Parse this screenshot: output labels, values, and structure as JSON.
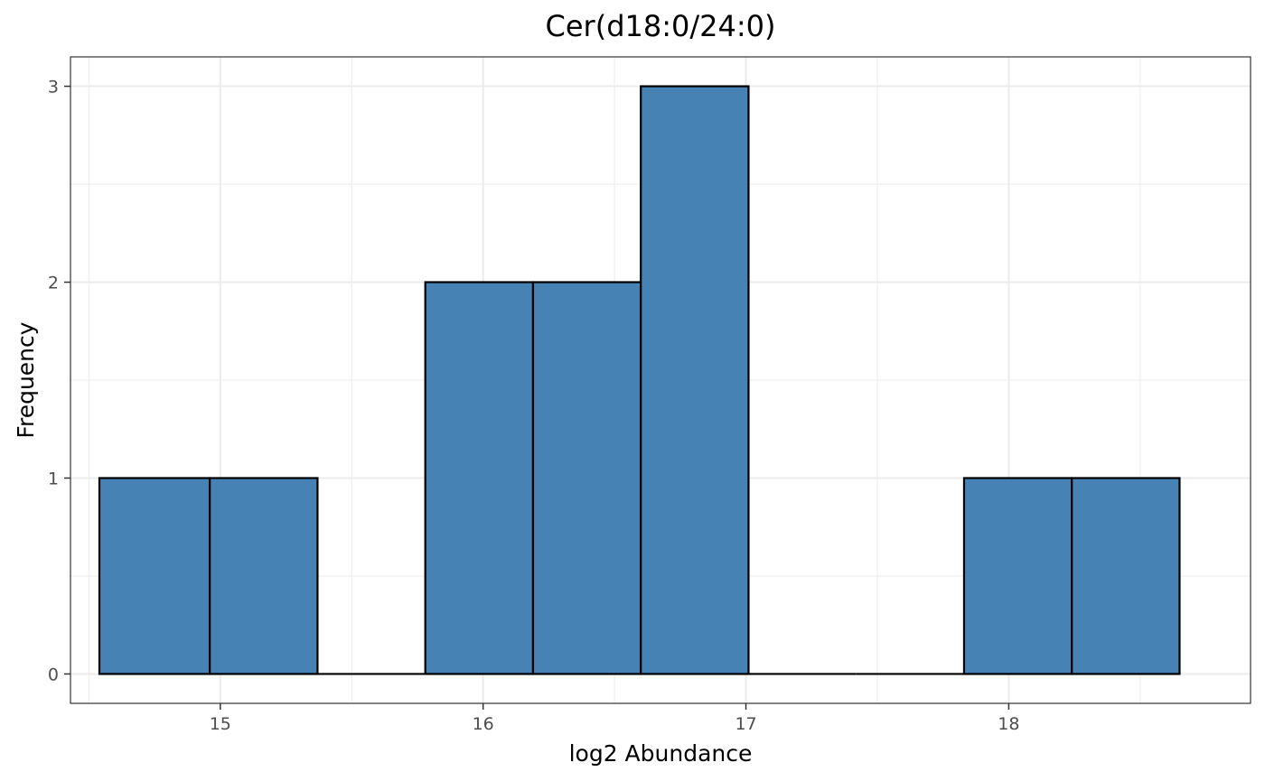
{
  "chart_data": {
    "type": "bar",
    "subtype": "histogram",
    "title": "Cer(d18:0/24:0)",
    "xlabel": "log2 Abundance",
    "ylabel": "Frequency",
    "xlim": [
      14.43,
      18.92
    ],
    "ylim": [
      -0.15,
      3.15
    ],
    "xticks": [
      15,
      16,
      17,
      18
    ],
    "yticks": [
      0,
      1,
      2,
      3
    ],
    "grid": true,
    "fill_color": "#4682B4",
    "edge_color": "#000000",
    "bins": [
      {
        "x0": 14.54,
        "x1": 14.96,
        "count": 1
      },
      {
        "x0": 14.96,
        "x1": 15.37,
        "count": 1
      },
      {
        "x0": 15.37,
        "x1": 15.78,
        "count": 0
      },
      {
        "x0": 15.78,
        "x1": 16.19,
        "count": 2
      },
      {
        "x0": 16.19,
        "x1": 16.6,
        "count": 2
      },
      {
        "x0": 16.6,
        "x1": 17.01,
        "count": 3
      },
      {
        "x0": 17.01,
        "x1": 17.42,
        "count": 0
      },
      {
        "x0": 17.42,
        "x1": 17.83,
        "count": 0
      },
      {
        "x0": 17.83,
        "x1": 18.24,
        "count": 1
      },
      {
        "x0": 18.24,
        "x1": 18.65,
        "count": 1
      }
    ]
  }
}
